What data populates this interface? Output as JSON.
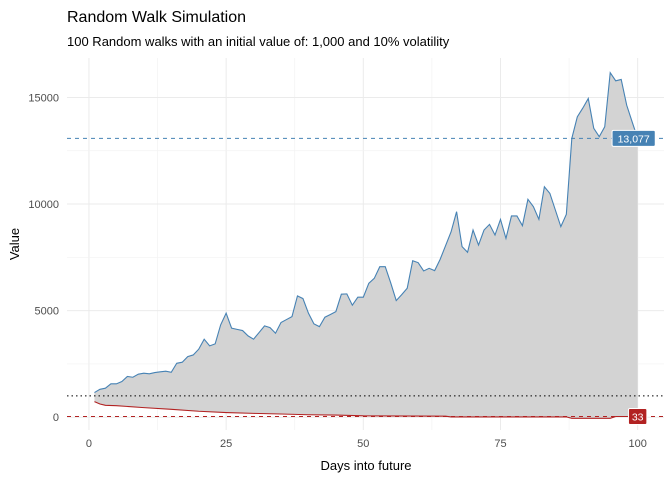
{
  "chart_data": {
    "type": "area",
    "title": "Random Walk Simulation",
    "subtitle": "100 Random walks with an initial value of: 1,000 and 10% volatility",
    "xlabel": "Days into future",
    "ylabel": "Value",
    "xlim": [
      -4,
      104.8
    ],
    "ylim": [
      -600,
      16850
    ],
    "x_ticks": [
      "0",
      "25",
      "50",
      "75",
      "100"
    ],
    "x_tick_values": [
      0,
      25,
      50,
      75,
      100
    ],
    "y_ticks": [
      "0",
      "5000",
      "10000",
      "15000"
    ],
    "y_tick_values": [
      0,
      5000,
      10000,
      15000
    ],
    "grid": true,
    "ribbon_color": "#d3d3d3",
    "series": [
      {
        "role": "max",
        "color": "#4682b4",
        "x": [
          1,
          2,
          3,
          4,
          5,
          6,
          7,
          8,
          9,
          10,
          11,
          12,
          13,
          14,
          15,
          16,
          17,
          18,
          19,
          20,
          21,
          22,
          23,
          24,
          25,
          26,
          27,
          28,
          29,
          30,
          31,
          32,
          33,
          34,
          35,
          36,
          37,
          38,
          39,
          40,
          41,
          42,
          43,
          44,
          45,
          46,
          47,
          48,
          49,
          50,
          51,
          52,
          53,
          54,
          55,
          56,
          57,
          58,
          59,
          60,
          61,
          62,
          63,
          64,
          65,
          66,
          67,
          68,
          69,
          70,
          71,
          72,
          73,
          74,
          75,
          76,
          77,
          78,
          79,
          80,
          81,
          82,
          83,
          84,
          85,
          86,
          87,
          88,
          89,
          90,
          91,
          92,
          93,
          94,
          95,
          96,
          97,
          98,
          99,
          100
        ],
        "values": [
          1155,
          1310,
          1360,
          1565,
          1565,
          1675,
          1910,
          1875,
          2020,
          2065,
          2035,
          2095,
          2130,
          2160,
          2110,
          2530,
          2580,
          2845,
          2920,
          3190,
          3660,
          3345,
          3440,
          4330,
          4880,
          4175,
          4120,
          4065,
          3815,
          3660,
          3970,
          4285,
          4205,
          3940,
          4440,
          4580,
          4720,
          5690,
          5565,
          4880,
          4380,
          4250,
          4690,
          4820,
          4955,
          5770,
          5785,
          5255,
          5630,
          5630,
          6280,
          6515,
          7060,
          7060,
          6300,
          5470,
          5750,
          6050,
          7340,
          7250,
          6860,
          6985,
          6875,
          7405,
          8050,
          8700,
          9640,
          8000,
          7735,
          8780,
          8075,
          8780,
          9045,
          8545,
          9280,
          8390,
          9440,
          9440,
          8985,
          10220,
          9875,
          9280,
          10810,
          10500,
          9720,
          8940,
          9515,
          13080,
          14090,
          14500,
          14950,
          13550,
          13160,
          13625,
          16160,
          15780,
          15845,
          14640,
          13850,
          13077
        ]
      },
      {
        "role": "min",
        "color": "#b22222",
        "x": [
          1,
          2,
          3,
          5,
          10,
          15,
          20,
          25,
          30,
          35,
          40,
          45,
          50,
          65,
          66,
          87,
          88,
          95,
          96,
          100
        ],
        "values": [
          733,
          620,
          560,
          540,
          450,
          370,
          280,
          220,
          180,
          150,
          115,
          100,
          65,
          50,
          15,
          15,
          -50,
          -50,
          33,
          33
        ]
      }
    ],
    "reference_lines": [
      {
        "value": 13077,
        "color": "#4682b4",
        "style": "dashed",
        "label": "13,077"
      },
      {
        "value": 33,
        "color": "#b22222",
        "style": "dashed",
        "label": "33"
      },
      {
        "value": 1000,
        "color": "#000000",
        "style": "dotted"
      }
    ]
  }
}
